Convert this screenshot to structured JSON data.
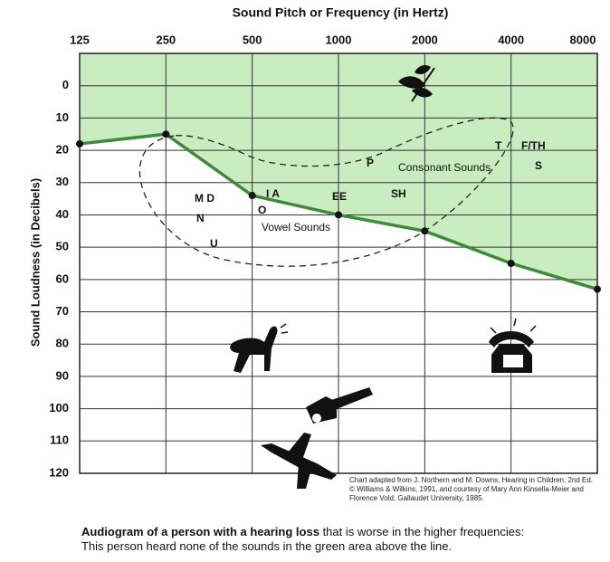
{
  "chart_data": {
    "type": "line",
    "title": "Sound Pitch or Frequency (in Hertz)",
    "y_label": "Sound Loudness (in Decibels)",
    "x": [
      125,
      250,
      500,
      1000,
      2000,
      4000,
      8000
    ],
    "xscale": "log",
    "xlim": [
      125,
      8000
    ],
    "xticks": [
      125,
      250,
      500,
      1000,
      2000,
      4000,
      8000
    ],
    "ylim": [
      120,
      -10
    ],
    "yticks": [
      0,
      10,
      20,
      30,
      40,
      50,
      60,
      70,
      80,
      90,
      100,
      110,
      120
    ],
    "grid": true,
    "series": [
      {
        "name": "Hearing threshold",
        "color": "#3d8a3a",
        "fill": "#c9ecc1",
        "values": [
          18,
          15,
          34,
          40,
          45,
          55,
          63
        ]
      }
    ],
    "annotations": [
      "M D",
      "N",
      "U",
      "I A",
      "O",
      "Vowel Sounds",
      "EE",
      "SH",
      "P",
      "Consonant Sounds",
      "T",
      "F/TH",
      "S"
    ],
    "credit": "Chart adapted from J. Northern and M. Downs, Hearing in Children, 2nd Ed. © Williams & Wilkins, 1991, and courtesy of Mary Ann Kinsella-Meier and Florence Vold, Gallaudet University, 1985.",
    "caption": {
      "bold": "Audiogram of a person with a hearing loss",
      "text": "that is worse in the higher frequencies:",
      "line2": "This person heard none of the sounds in the green area above the line."
    }
  }
}
